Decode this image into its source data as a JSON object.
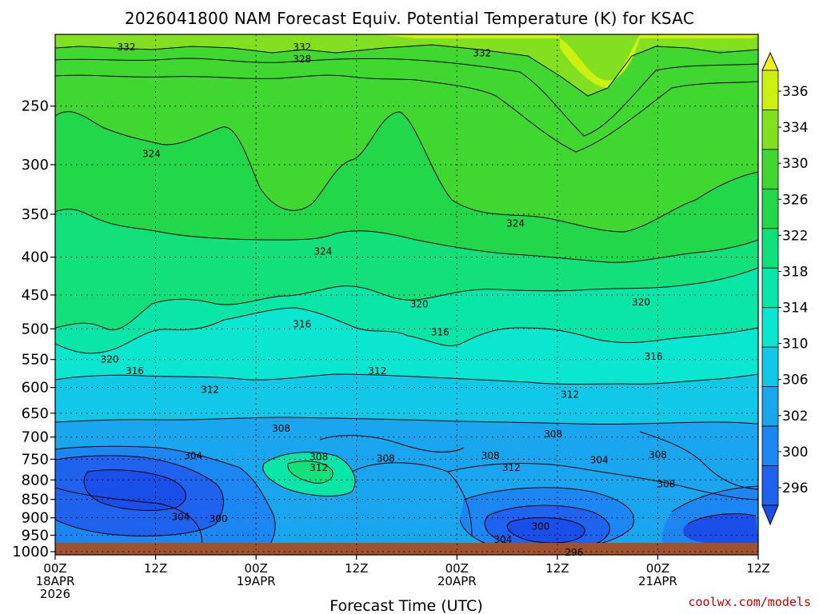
{
  "chart_data": {
    "type": "heatmap",
    "title": "2026041800 NAM Forecast Equiv. Potential Temperature (K) for KSAC",
    "xlabel": "Forecast Time (UTC)",
    "ylabel": "",
    "credit": "coolwx.com/models",
    "x_ticks": [
      {
        "hour": 0,
        "lines": [
          "00Z",
          "18APR",
          "2026"
        ]
      },
      {
        "hour": 12,
        "lines": [
          "12Z"
        ]
      },
      {
        "hour": 24,
        "lines": [
          "00Z",
          "19APR"
        ]
      },
      {
        "hour": 36,
        "lines": [
          "12Z"
        ]
      },
      {
        "hour": 48,
        "lines": [
          "00Z",
          "20APR"
        ]
      },
      {
        "hour": 60,
        "lines": [
          "12Z"
        ]
      },
      {
        "hour": 72,
        "lines": [
          "00Z",
          "21APR"
        ]
      },
      {
        "hour": 84,
        "lines": [
          "12Z"
        ]
      }
    ],
    "xlim": [
      0,
      84
    ],
    "pressure_ticks": [
      250,
      300,
      350,
      400,
      450,
      500,
      550,
      600,
      650,
      700,
      750,
      800,
      850,
      900,
      950,
      1000
    ],
    "ylim_hPa": [
      1010,
      200
    ],
    "colorbar": {
      "labels": [
        296,
        300,
        302,
        306,
        310,
        314,
        318,
        322,
        326,
        330,
        334,
        336
      ],
      "colors": [
        "#1a4ee8",
        "#1f62ee",
        "#1c86f2",
        "#1aa6ee",
        "#12c8e8",
        "#0ae6d0",
        "#0ae6a8",
        "#12e07a",
        "#22d84a",
        "#40d830",
        "#82e020",
        "#ccf010",
        "#f0f020"
      ]
    },
    "contour_labels": [
      {
        "value": "332",
        "hour": 8.5,
        "hPa": 208
      },
      {
        "value": "332",
        "hour": 29.5,
        "hPa": 208
      },
      {
        "value": "328",
        "hour": 29.5,
        "hPa": 216
      },
      {
        "value": "332",
        "hour": 51.0,
        "hPa": 212
      },
      {
        "value": "324",
        "hour": 11.5,
        "hPa": 290
      },
      {
        "value": "324",
        "hour": 32.0,
        "hPa": 393
      },
      {
        "value": "324",
        "hour": 55.0,
        "hPa": 360
      },
      {
        "value": "320",
        "hour": 6.5,
        "hPa": 550
      },
      {
        "value": "320",
        "hour": 43.5,
        "hPa": 463
      },
      {
        "value": "320",
        "hour": 70.0,
        "hPa": 460
      },
      {
        "value": "316",
        "hour": 9.5,
        "hPa": 570
      },
      {
        "value": "316",
        "hour": 29.5,
        "hPa": 493
      },
      {
        "value": "316",
        "hour": 46.0,
        "hPa": 505
      },
      {
        "value": "316",
        "hour": 71.5,
        "hPa": 545
      },
      {
        "value": "312",
        "hour": 18.5,
        "hPa": 604
      },
      {
        "value": "312",
        "hour": 38.5,
        "hPa": 570
      },
      {
        "value": "312",
        "hour": 61.5,
        "hPa": 613
      },
      {
        "value": "308",
        "hour": 27.0,
        "hPa": 682
      },
      {
        "value": "308",
        "hour": 59.5,
        "hPa": 694
      },
      {
        "value": "308",
        "hour": 72.0,
        "hPa": 740
      },
      {
        "value": "308",
        "hour": 31.5,
        "hPa": 745
      },
      {
        "value": "308",
        "hour": 39.5,
        "hPa": 748
      },
      {
        "value": "308",
        "hour": 52.0,
        "hPa": 742
      },
      {
        "value": "308",
        "hour": 73.0,
        "hPa": 810
      },
      {
        "value": "312",
        "hour": 31.5,
        "hPa": 770
      },
      {
        "value": "312",
        "hour": 54.5,
        "hPa": 770
      },
      {
        "value": "304",
        "hour": 16.5,
        "hPa": 742
      },
      {
        "value": "304",
        "hour": 65.0,
        "hPa": 752
      },
      {
        "value": "304",
        "hour": 15.0,
        "hPa": 897
      },
      {
        "value": "300",
        "hour": 19.5,
        "hPa": 903
      },
      {
        "value": "304",
        "hour": 53.5,
        "hPa": 963
      },
      {
        "value": "300",
        "hour": 58.0,
        "hPa": 925
      },
      {
        "value": "296",
        "hour": 62.0,
        "hPa": 1002
      }
    ]
  }
}
